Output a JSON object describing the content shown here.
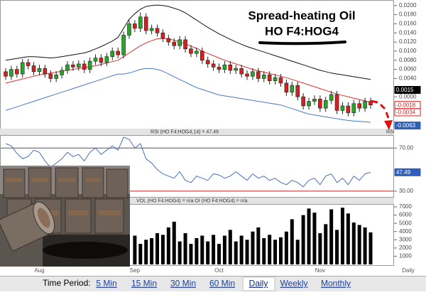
{
  "chart_data": [
    {
      "type": "candlestick",
      "title": "Spread-heating Oil",
      "subtitle": "HO F4:HOG4",
      "open": [
        0.0055,
        0.0045,
        0.006,
        0.005,
        0.0075,
        0.0068,
        0.0055,
        0.0062,
        0.005,
        0.004,
        0.0048,
        0.0058,
        0.007,
        0.0065,
        0.0072,
        0.006,
        0.0078,
        0.0085,
        0.0075,
        0.0088,
        0.01,
        0.0092,
        0.0135,
        0.016,
        0.015,
        0.0175,
        0.0145,
        0.015,
        0.014,
        0.0128,
        0.012,
        0.0112,
        0.0125,
        0.0105,
        0.0095,
        0.01,
        0.008,
        0.0072,
        0.0065,
        0.006,
        0.007,
        0.0058,
        0.0062,
        0.005,
        0.0045,
        0.0055,
        0.004,
        0.0048,
        0.0035,
        0.0042,
        0.003,
        0.001,
        0.0025,
        0.0,
        -0.002,
        -0.001,
        -0.0005,
        -0.0025,
        -0.0008,
        0.0005,
        -0.003,
        -0.002,
        -0.0035,
        -0.0015,
        -0.0025,
        -0.001
      ],
      "high": [
        0.0063,
        0.0068,
        0.0068,
        0.0083,
        0.0083,
        0.0076,
        0.007,
        0.007,
        0.0058,
        0.0056,
        0.0066,
        0.0078,
        0.0078,
        0.008,
        0.008,
        0.0086,
        0.0093,
        0.0093,
        0.0096,
        0.0108,
        0.0108,
        0.0143,
        0.0168,
        0.0168,
        0.0185,
        0.0183,
        0.0158,
        0.0158,
        0.0148,
        0.0136,
        0.0128,
        0.0133,
        0.0133,
        0.0113,
        0.0108,
        0.0108,
        0.0088,
        0.008,
        0.0073,
        0.0078,
        0.0078,
        0.007,
        0.007,
        0.0058,
        0.0063,
        0.0063,
        0.0056,
        0.0056,
        0.005,
        0.005,
        0.0038,
        0.0033,
        0.0033,
        0.0008,
        -0.0002,
        0.0003,
        0.0003,
        0.0,
        0.0013,
        0.0013,
        -0.0012,
        -0.0012,
        -0.0007,
        -0.0007,
        -0.0002,
        -0.0002
      ],
      "low": [
        0.0037,
        0.0037,
        0.0042,
        0.0042,
        0.006,
        0.0047,
        0.0047,
        0.0042,
        0.0032,
        0.0032,
        0.004,
        0.005,
        0.0057,
        0.0057,
        0.0052,
        0.0052,
        0.007,
        0.0067,
        0.0067,
        0.008,
        0.0084,
        0.0084,
        0.0127,
        0.0142,
        0.0142,
        0.0137,
        0.0137,
        0.0132,
        0.012,
        0.0112,
        0.0104,
        0.0104,
        0.0097,
        0.0087,
        0.0087,
        0.0072,
        0.0064,
        0.0057,
        0.0052,
        0.0052,
        0.005,
        0.005,
        0.0042,
        0.0037,
        0.0037,
        0.0032,
        0.0032,
        0.0027,
        0.0027,
        0.0022,
        0.0002,
        0.0002,
        -0.0008,
        -0.0028,
        -0.0028,
        -0.0018,
        -0.0033,
        -0.0033,
        -0.0016,
        -0.0038,
        -0.0038,
        -0.0043,
        -0.0043,
        -0.0033,
        -0.0033,
        -0.0026
      ],
      "close": [
        0.0045,
        0.006,
        0.005,
        0.0075,
        0.0068,
        0.0055,
        0.0062,
        0.005,
        0.004,
        0.0048,
        0.0058,
        0.007,
        0.0065,
        0.0072,
        0.006,
        0.0078,
        0.0085,
        0.0075,
        0.0088,
        0.01,
        0.0092,
        0.0135,
        0.016,
        0.015,
        0.0175,
        0.0145,
        0.015,
        0.014,
        0.0128,
        0.012,
        0.0112,
        0.0125,
        0.0105,
        0.0095,
        0.01,
        0.008,
        0.0072,
        0.0065,
        0.006,
        0.007,
        0.0058,
        0.0062,
        0.005,
        0.0045,
        0.0055,
        0.004,
        0.0048,
        0.0035,
        0.0042,
        0.003,
        0.001,
        0.0025,
        0.0,
        -0.002,
        -0.001,
        -0.0005,
        -0.0025,
        -0.0008,
        0.0005,
        -0.003,
        -0.002,
        -0.0035,
        -0.0015,
        -0.0025,
        -0.001,
        -0.0018
      ],
      "up_color": "#2aa52a",
      "down_color": "#d42020",
      "overlays": [
        {
          "color": "#111111",
          "values": [
            0.008,
            0.0082,
            0.0084,
            0.0086,
            0.0088,
            0.0088,
            0.0087,
            0.0086,
            0.0085,
            0.0086,
            0.0088,
            0.009,
            0.0092,
            0.0094,
            0.0096,
            0.01,
            0.0105,
            0.011,
            0.0116,
            0.0122,
            0.013,
            0.015,
            0.017,
            0.0182,
            0.0192,
            0.0198,
            0.02,
            0.0201,
            0.02,
            0.0198,
            0.0194,
            0.019,
            0.0184,
            0.0176,
            0.0168,
            0.016,
            0.0152,
            0.0145,
            0.0138,
            0.0132,
            0.0126,
            0.012,
            0.0115,
            0.011,
            0.0106,
            0.0102,
            0.0098,
            0.0094,
            0.009,
            0.0086,
            0.0082,
            0.0078,
            0.0074,
            0.007,
            0.0066,
            0.0062,
            0.0058,
            0.0055,
            0.0052,
            0.005,
            0.0048,
            0.0046,
            0.0044,
            0.0042,
            0.004,
            0.0038
          ]
        },
        {
          "color": "#4a78c8",
          "values": [
            -0.003,
            -0.0026,
            -0.0022,
            -0.0018,
            -0.0014,
            -0.001,
            -0.0006,
            -0.0002,
            0.0002,
            0.0006,
            0.001,
            0.0014,
            0.0018,
            0.0022,
            0.0026,
            0.003,
            0.0034,
            0.0038,
            0.0042,
            0.0046,
            0.005,
            0.005,
            0.0052,
            0.0056,
            0.006,
            0.0062,
            0.0062,
            0.006,
            0.0056,
            0.005,
            0.0044,
            0.0038,
            0.0032,
            0.0026,
            0.002,
            0.0016,
            0.0012,
            0.0008,
            0.0004,
            0.0002,
            0.0,
            -0.0002,
            -0.0004,
            -0.0006,
            -0.0008,
            -0.001,
            -0.0012,
            -0.0014,
            -0.0016,
            -0.0018,
            -0.0022,
            -0.0026,
            -0.003,
            -0.0034,
            -0.0038,
            -0.004,
            -0.0042,
            -0.0044,
            -0.0046,
            -0.0048,
            -0.005,
            -0.0052,
            -0.0053,
            -0.0054,
            -0.0055,
            -0.0056
          ]
        },
        {
          "color": "#e03030",
          "values": [
            0.003,
            0.0033,
            0.0036,
            0.0039,
            0.0042,
            0.0045,
            0.0048,
            0.005,
            0.0052,
            0.0054,
            0.0056,
            0.0058,
            0.006,
            0.0062,
            0.0064,
            0.0066,
            0.0068,
            0.0071,
            0.0074,
            0.0077,
            0.008,
            0.0088,
            0.0096,
            0.0104,
            0.0112,
            0.0118,
            0.0123,
            0.0127,
            0.0128,
            0.0127,
            0.0124,
            0.012,
            0.0116,
            0.0111,
            0.0106,
            0.01,
            0.0095,
            0.009,
            0.0085,
            0.008,
            0.0076,
            0.0072,
            0.0068,
            0.0064,
            0.006,
            0.0057,
            0.0054,
            0.0051,
            0.0048,
            0.0045,
            0.0042,
            0.0038,
            0.0034,
            0.003,
            0.0026,
            0.0022,
            0.0018,
            0.0014,
            0.001,
            0.0006,
            0.0003,
            0.0,
            -0.0003,
            -0.0006,
            -0.0009,
            -0.0012
          ]
        }
      ],
      "ylim": [
        -0.0073,
        0.0209
      ],
      "yticks": [
        {
          "value": 0.02,
          "label": "0.0200"
        },
        {
          "value": 0.018,
          "label": "0.0180"
        },
        {
          "value": 0.016,
          "label": "0.0160"
        },
        {
          "value": 0.014,
          "label": "0.0140"
        },
        {
          "value": 0.012,
          "label": "0.0120"
        },
        {
          "value": 0.01,
          "label": "0.0100"
        },
        {
          "value": 0.008,
          "label": "0.0080"
        },
        {
          "value": 0.006,
          "label": "0.0060"
        },
        {
          "value": 0.004,
          "label": "0.0040"
        },
        {
          "value": 0,
          "label": "0.0000"
        }
      ],
      "flags": [
        {
          "value": 0.0015,
          "label": "0.0015",
          "color": "#000000"
        },
        {
          "value": -0.0018,
          "label": "-0.0018",
          "color": "#d42020"
        },
        {
          "value": -0.0034,
          "label": "-0.0034",
          "color": "#d42020"
        },
        {
          "value": -0.0063,
          "label": "-0.0063",
          "color": "#2f5fb8"
        }
      ]
    },
    {
      "type": "line",
      "title": "RSI (HO F4:HOG4,14) = 47.49",
      "axis_label": "RSI",
      "color": "#4a6fb5",
      "values": [
        74,
        72,
        65,
        60,
        62,
        68,
        66,
        58,
        52,
        56,
        60,
        66,
        62,
        64,
        58,
        66,
        70,
        64,
        68,
        72,
        68,
        80,
        78,
        70,
        74,
        60,
        56,
        50,
        46,
        44,
        42,
        48,
        40,
        38,
        44,
        42,
        40,
        46,
        45,
        42,
        44,
        48,
        44,
        40,
        46,
        42,
        44,
        40,
        42,
        38,
        36,
        40,
        38,
        34,
        40,
        42,
        36,
        44,
        46,
        38,
        42,
        36,
        44,
        40,
        46,
        47.49
      ],
      "ylim": [
        24,
        82
      ],
      "yticks": [
        {
          "value": 70,
          "label": "70.00"
        },
        {
          "value": 30,
          "label": "30.00"
        }
      ],
      "ref_lines": [
        {
          "value": 70,
          "color": "#555555"
        },
        {
          "value": 30,
          "color": "#c02020"
        }
      ],
      "flags": [
        {
          "value": 47.49,
          "label": "47.49",
          "color": "#2f5fb8"
        }
      ]
    },
    {
      "type": "bar",
      "title": "VOL (HO F4:HOG4) = n/a OI (HO F4:HOG4) = n/a",
      "color": "#000000",
      "categories": [
        null,
        null,
        null,
        null,
        null,
        null,
        "Aug",
        null,
        null,
        null,
        null,
        null,
        null,
        null,
        null,
        null,
        null,
        null,
        null,
        null,
        null,
        null,
        null,
        "Sep",
        null,
        null,
        null,
        null,
        null,
        null,
        null,
        null,
        null,
        null,
        null,
        null,
        null,
        null,
        "Oct",
        null,
        null,
        null,
        null,
        null,
        null,
        null,
        null,
        null,
        null,
        null,
        null,
        null,
        null,
        null,
        null,
        null,
        "Nov",
        null,
        null,
        null,
        null,
        null,
        null,
        null,
        null,
        null
      ],
      "values": [
        null,
        null,
        null,
        null,
        null,
        null,
        null,
        null,
        null,
        null,
        null,
        null,
        null,
        null,
        null,
        null,
        null,
        null,
        null,
        null,
        null,
        null,
        null,
        3500,
        2500,
        3000,
        3200,
        3800,
        3600,
        4500,
        5200,
        2800,
        3800,
        2500,
        3200,
        3500,
        2800,
        3600,
        2500,
        3500,
        4200,
        2800,
        3500,
        3000,
        4000,
        4500,
        3200,
        3600,
        3000,
        3300,
        4000,
        5500,
        3000,
        6000,
        6800,
        6300,
        3800,
        4900,
        6700,
        4200,
        6900,
        6200,
        5100,
        4800,
        4500,
        3900
      ],
      "ylim": [
        0,
        7350
      ],
      "yticks": [
        7000,
        6000,
        5000,
        4000,
        3000,
        2000,
        1000
      ],
      "x_axis_label": "Daily"
    }
  ],
  "toolbar": {
    "label": "Time Period:",
    "options": [
      "5 Min",
      "15 Min",
      "30 Min",
      "60 Min",
      "Daily",
      "Weekly",
      "Monthly"
    ],
    "selected_index": 4
  }
}
